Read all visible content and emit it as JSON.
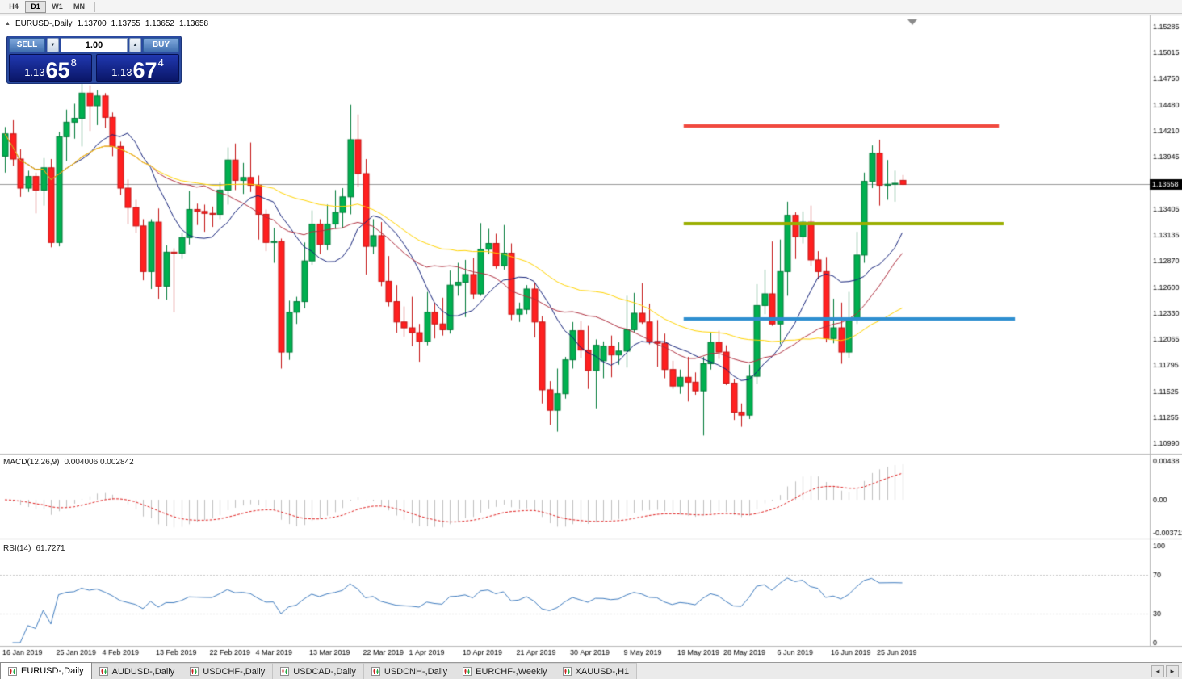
{
  "toolbar": {
    "timeframes": [
      {
        "label": "H4",
        "active": false
      },
      {
        "label": "D1",
        "active": true
      },
      {
        "label": "W1",
        "active": false
      },
      {
        "label": "MN",
        "active": false
      }
    ]
  },
  "chart_header": {
    "collapse_glyph": "▲",
    "symbol": "EURUSD-,Daily",
    "open": "1.13700",
    "high": "1.13755",
    "low": "1.13652",
    "close": "1.13658"
  },
  "trade_panel": {
    "sell_label": "SELL",
    "buy_label": "BUY",
    "volume": "1.00",
    "step_down_glyph": "▼",
    "step_up_glyph": "▲",
    "sell_price": {
      "prefix": "1.13",
      "pips": "65",
      "point": "8"
    },
    "buy_price": {
      "prefix": "1.13",
      "pips": "67",
      "point": "4"
    }
  },
  "price_axis": {
    "labels": [
      "1.15285",
      "1.15015",
      "1.14750",
      "1.14480",
      "1.14210",
      "1.13945",
      "1.13675",
      "1.13405",
      "1.13135",
      "1.12870",
      "1.12600",
      "1.12330",
      "1.12065",
      "1.11795",
      "1.11525",
      "1.11255",
      "1.10990"
    ],
    "current": "1.13658"
  },
  "macd_panel": {
    "title": "MACD(12,26,9)",
    "values": "0.004006 0.002842",
    "hist_color": "#c0c0c0",
    "signal_color": "#e02020",
    "axis": [
      {
        "text": "0.00438",
        "value": 0.00438
      },
      {
        "text": "0.00",
        "value": 0
      },
      {
        "text": "-0.003711",
        "value": -0.003711
      }
    ]
  },
  "rsi_panel": {
    "title": "RSI(14)",
    "value": "61.7271",
    "period": 14,
    "color": "#3f7cbf",
    "levels": [
      70,
      30
    ],
    "axis": [
      {
        "text": "100",
        "value": 100
      },
      {
        "text": "70",
        "value": 70
      },
      {
        "text": "30",
        "value": 30
      },
      {
        "text": "0",
        "value": 0
      }
    ]
  },
  "tabs": {
    "items": [
      {
        "label": "EURUSD-,Daily",
        "active": true
      },
      {
        "label": "AUDUSD-,Daily",
        "active": false
      },
      {
        "label": "USDCHF-,Daily",
        "active": false
      },
      {
        "label": "USDCAD-,Daily",
        "active": false
      },
      {
        "label": "USDCNH-,Daily",
        "active": false
      },
      {
        "label": "EURCHF-,Weekly",
        "active": false
      },
      {
        "label": "XAUUSD-,H1",
        "active": false
      }
    ],
    "scroll_left": "◄",
    "scroll_right": "►"
  },
  "chart_data": {
    "type": "candlestick",
    "title": "EURUSD-,Daily",
    "timeframe": "Daily",
    "y_range": [
      1.1089,
      1.1543
    ],
    "up_color": "#00b050",
    "up_border": "#007a38",
    "down_color": "#ff2020",
    "down_border": "#c41414",
    "moving_averages": [
      {
        "period": 10,
        "color": "#14227a"
      },
      {
        "period": 20,
        "color": "#b03040"
      },
      {
        "period": 40,
        "color": "#ffd400"
      }
    ],
    "h_lines": [
      {
        "price": 1.1426,
        "from_bar": 88.5,
        "to_bar": 129.6,
        "color": "#f1493f",
        "width": 4
      },
      {
        "price": 1.1325,
        "from_bar": 88.5,
        "to_bar": 130.2,
        "color": "#9aae00",
        "width": 4
      },
      {
        "price": 1.1227,
        "from_bar": 88.5,
        "to_bar": 131.7,
        "color": "#2f8fd0",
        "width": 4
      }
    ],
    "x_tick_labels": [
      {
        "i": 0,
        "t": "16 Jan 2019"
      },
      {
        "i": 7,
        "t": "25 Jan 2019"
      },
      {
        "i": 13,
        "t": "4 Feb 2019"
      },
      {
        "i": 20,
        "t": "13 Feb 2019"
      },
      {
        "i": 27,
        "t": "22 Feb 2019"
      },
      {
        "i": 33,
        "t": "4 Mar 2019"
      },
      {
        "i": 40,
        "t": "13 Mar 2019"
      },
      {
        "i": 47,
        "t": "22 Mar 2019"
      },
      {
        "i": 53,
        "t": "1 Apr 2019"
      },
      {
        "i": 60,
        "t": "10 Apr 2019"
      },
      {
        "i": 67,
        "t": "21 Apr 2019"
      },
      {
        "i": 74,
        "t": "30 Apr 2019"
      },
      {
        "i": 81,
        "t": "9 May 2019"
      },
      {
        "i": 88,
        "t": "19 May 2019"
      },
      {
        "i": 94,
        "t": "28 May 2019"
      },
      {
        "i": 101,
        "t": "6 Jun 2019"
      },
      {
        "i": 108,
        "t": "16 Jun 2019"
      },
      {
        "i": 114,
        "t": "25 Jun 2019"
      }
    ],
    "ohlc": [
      [
        1.1395,
        1.1425,
        1.1378,
        1.1418
      ],
      [
        1.1418,
        1.1432,
        1.1385,
        1.1392
      ],
      [
        1.1392,
        1.1402,
        1.1353,
        1.1362
      ],
      [
        1.1362,
        1.138,
        1.1358,
        1.1374
      ],
      [
        1.1374,
        1.1378,
        1.1336,
        1.136
      ],
      [
        1.136,
        1.1393,
        1.1344,
        1.1383
      ],
      [
        1.1383,
        1.1392,
        1.1301,
        1.1306
      ],
      [
        1.1306,
        1.142,
        1.1302,
        1.1415
      ],
      [
        1.1415,
        1.1443,
        1.139,
        1.143
      ],
      [
        1.143,
        1.1449,
        1.1413,
        1.1434
      ],
      [
        1.1434,
        1.147,
        1.1405,
        1.146
      ],
      [
        1.146,
        1.1468,
        1.1421,
        1.1447
      ],
      [
        1.1447,
        1.1463,
        1.1427,
        1.1457
      ],
      [
        1.1457,
        1.146,
        1.1424,
        1.1435
      ],
      [
        1.1435,
        1.144,
        1.1395,
        1.1405
      ],
      [
        1.1405,
        1.141,
        1.1355,
        1.1362
      ],
      [
        1.1362,
        1.1371,
        1.1325,
        1.1342
      ],
      [
        1.1342,
        1.135,
        1.1316,
        1.1323
      ],
      [
        1.1323,
        1.133,
        1.1267,
        1.1276
      ],
      [
        1.1276,
        1.133,
        1.1258,
        1.1327
      ],
      [
        1.1327,
        1.1341,
        1.1248,
        1.1261
      ],
      [
        1.1261,
        1.1303,
        1.1247,
        1.1296
      ],
      [
        1.1296,
        1.13,
        1.1234,
        1.1295
      ],
      [
        1.1295,
        1.1316,
        1.1289,
        1.1311
      ],
      [
        1.1311,
        1.1359,
        1.1304,
        1.134
      ],
      [
        1.134,
        1.1346,
        1.1324,
        1.1338
      ],
      [
        1.1338,
        1.1345,
        1.1317,
        1.1336
      ],
      [
        1.1336,
        1.1343,
        1.1322,
        1.1335
      ],
      [
        1.1335,
        1.1368,
        1.133,
        1.136
      ],
      [
        1.136,
        1.1404,
        1.1345,
        1.1391
      ],
      [
        1.1391,
        1.1408,
        1.136,
        1.137
      ],
      [
        1.137,
        1.1388,
        1.1356,
        1.1373
      ],
      [
        1.1373,
        1.1409,
        1.1358,
        1.1365
      ],
      [
        1.1365,
        1.1375,
        1.1309,
        1.1335
      ],
      [
        1.1335,
        1.134,
        1.1297,
        1.1306
      ],
      [
        1.1306,
        1.1321,
        1.1285,
        1.1307
      ],
      [
        1.1307,
        1.131,
        1.1176,
        1.1193
      ],
      [
        1.1193,
        1.1246,
        1.1185,
        1.1234
      ],
      [
        1.1234,
        1.125,
        1.1222,
        1.1245
      ],
      [
        1.1245,
        1.1306,
        1.1238,
        1.1287
      ],
      [
        1.1287,
        1.1339,
        1.1283,
        1.1325
      ],
      [
        1.1325,
        1.133,
        1.1294,
        1.1304
      ],
      [
        1.1304,
        1.1345,
        1.1298,
        1.1325
      ],
      [
        1.1325,
        1.136,
        1.132,
        1.1337
      ],
      [
        1.1337,
        1.1362,
        1.1321,
        1.1353
      ],
      [
        1.1353,
        1.1448,
        1.1335,
        1.1412
      ],
      [
        1.1412,
        1.1438,
        1.1363,
        1.1377
      ],
      [
        1.1377,
        1.1392,
        1.1273,
        1.1302
      ],
      [
        1.1302,
        1.133,
        1.1294,
        1.1313
      ],
      [
        1.1313,
        1.1327,
        1.1261,
        1.1266
      ],
      [
        1.1266,
        1.1292,
        1.124,
        1.1245
      ],
      [
        1.1245,
        1.1262,
        1.1213,
        1.1224
      ],
      [
        1.1224,
        1.124,
        1.1209,
        1.1218
      ],
      [
        1.1218,
        1.125,
        1.1199,
        1.1213
      ],
      [
        1.1213,
        1.1222,
        1.1183,
        1.1204
      ],
      [
        1.1204,
        1.1255,
        1.12,
        1.1234
      ],
      [
        1.1234,
        1.1244,
        1.1207,
        1.1222
      ],
      [
        1.1222,
        1.1249,
        1.121,
        1.1216
      ],
      [
        1.1216,
        1.1277,
        1.1212,
        1.1262
      ],
      [
        1.1262,
        1.1285,
        1.1251,
        1.1265
      ],
      [
        1.1265,
        1.1288,
        1.1229,
        1.1273
      ],
      [
        1.1273,
        1.129,
        1.1248,
        1.1253
      ],
      [
        1.1253,
        1.1326,
        1.1251,
        1.1299
      ],
      [
        1.1299,
        1.132,
        1.1294,
        1.1305
      ],
      [
        1.1305,
        1.1315,
        1.1279,
        1.1282
      ],
      [
        1.1282,
        1.1324,
        1.1278,
        1.1295
      ],
      [
        1.1295,
        1.1305,
        1.1226,
        1.1232
      ],
      [
        1.1232,
        1.1244,
        1.1224,
        1.1237
      ],
      [
        1.1237,
        1.1262,
        1.1232,
        1.1258
      ],
      [
        1.1258,
        1.1264,
        1.1208,
        1.1224
      ],
      [
        1.1224,
        1.123,
        1.114,
        1.1154
      ],
      [
        1.1154,
        1.1163,
        1.1118,
        1.1133
      ],
      [
        1.1133,
        1.1176,
        1.1111,
        1.115
      ],
      [
        1.115,
        1.1188,
        1.1145,
        1.1185
      ],
      [
        1.1185,
        1.1224,
        1.1176,
        1.1215
      ],
      [
        1.1215,
        1.1225,
        1.1187,
        1.1195
      ],
      [
        1.1195,
        1.122,
        1.1155,
        1.1174
      ],
      [
        1.1174,
        1.1206,
        1.1135,
        1.12
      ],
      [
        1.1184,
        1.1204,
        1.1166,
        1.1199
      ],
      [
        1.1199,
        1.121,
        1.1167,
        1.119
      ],
      [
        1.119,
        1.1203,
        1.118,
        1.1194
      ],
      [
        1.1194,
        1.1251,
        1.1177,
        1.1216
      ],
      [
        1.1216,
        1.1254,
        1.1213,
        1.1233
      ],
      [
        1.1233,
        1.1264,
        1.1222,
        1.1224
      ],
      [
        1.1224,
        1.1243,
        1.1201,
        1.1204
      ],
      [
        1.1204,
        1.1226,
        1.1178,
        1.1202
      ],
      [
        1.1202,
        1.1212,
        1.1166,
        1.1175
      ],
      [
        1.1175,
        1.1184,
        1.1155,
        1.1158
      ],
      [
        1.1158,
        1.1175,
        1.115,
        1.1167
      ],
      [
        1.1167,
        1.1188,
        1.1142,
        1.1162
      ],
      [
        1.1162,
        1.1172,
        1.1149,
        1.1153
      ],
      [
        1.1153,
        1.1188,
        1.1107,
        1.1181
      ],
      [
        1.1181,
        1.1213,
        1.1175,
        1.1203
      ],
      [
        1.1203,
        1.1215,
        1.1186,
        1.1193
      ],
      [
        1.1193,
        1.12,
        1.1159,
        1.1161
      ],
      [
        1.1161,
        1.1165,
        1.1123,
        1.1131
      ],
      [
        1.1131,
        1.114,
        1.1116,
        1.1128
      ],
      [
        1.1128,
        1.118,
        1.1124,
        1.1168
      ],
      [
        1.1168,
        1.1263,
        1.116,
        1.1241
      ],
      [
        1.1241,
        1.1278,
        1.1232,
        1.1253
      ],
      [
        1.1253,
        1.1307,
        1.122,
        1.1222
      ],
      [
        1.1222,
        1.1309,
        1.1201,
        1.1276
      ],
      [
        1.1276,
        1.1348,
        1.1251,
        1.1334
      ],
      [
        1.1334,
        1.1337,
        1.1289,
        1.1312
      ],
      [
        1.1312,
        1.1338,
        1.1305,
        1.1327
      ],
      [
        1.1327,
        1.1344,
        1.1282,
        1.1288
      ],
      [
        1.1288,
        1.1297,
        1.1268,
        1.1276
      ],
      [
        1.1276,
        1.1291,
        1.1203,
        1.1207
      ],
      [
        1.1207,
        1.1248,
        1.1202,
        1.1218
      ],
      [
        1.1218,
        1.1244,
        1.1181,
        1.1193
      ],
      [
        1.1193,
        1.1255,
        1.1187,
        1.1226
      ],
      [
        1.1226,
        1.1317,
        1.1222,
        1.1293
      ],
      [
        1.1293,
        1.1378,
        1.1285,
        1.1369
      ],
      [
        1.1369,
        1.1406,
        1.1362,
        1.1398
      ],
      [
        1.1398,
        1.1412,
        1.1344,
        1.1365
      ],
      [
        1.1365,
        1.1391,
        1.135,
        1.1366
      ],
      [
        1.1366,
        1.138,
        1.1348,
        1.1367
      ],
      [
        1.137,
        1.13755,
        1.13652,
        1.13658
      ]
    ]
  }
}
